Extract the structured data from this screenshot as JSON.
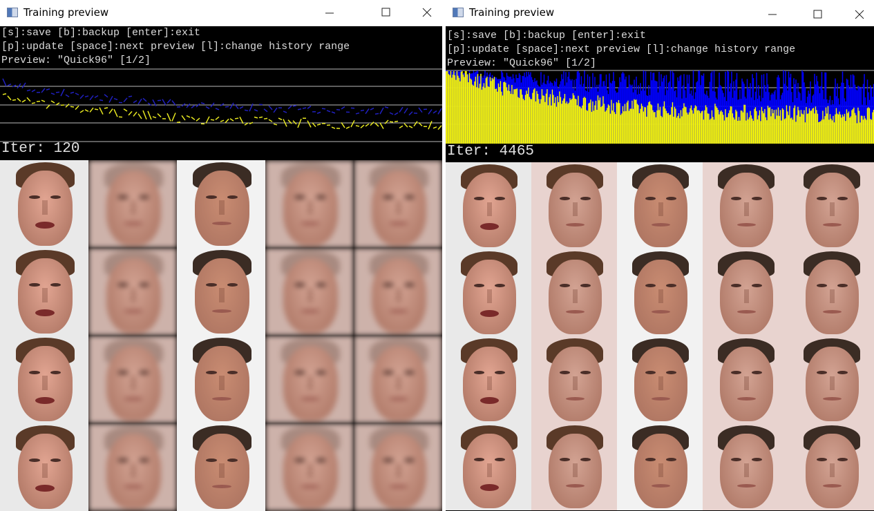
{
  "windows": [
    {
      "title": "Training preview",
      "help": [
        "[s]:save [b]:backup [enter]:exit",
        "[p]:update [space]:next preview [l]:change history range",
        "Preview: \"Quick96\" [1/2]"
      ],
      "iteration": "Iter: 120"
    },
    {
      "title": "Training preview",
      "help": [
        "[s]:save [b]:backup [enter]:exit",
        "[p]:update [space]:next preview [l]:change history range",
        "Preview: \"Quick96\" [1/2]"
      ],
      "iteration": "Iter: 4465"
    }
  ]
}
